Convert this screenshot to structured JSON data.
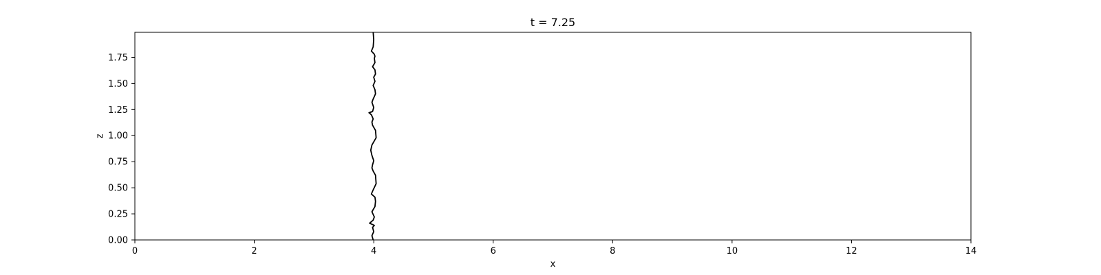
{
  "chart_data": {
    "type": "line",
    "title": "t = 7.25",
    "xlabel": "x",
    "ylabel": "z",
    "xlim": [
      0,
      14
    ],
    "ylim": [
      0,
      1.99
    ],
    "xticks": [
      0,
      2,
      4,
      6,
      8,
      10,
      12,
      14
    ],
    "xtick_labels": [
      "0",
      "2",
      "4",
      "6",
      "8",
      "10",
      "12",
      "14"
    ],
    "yticks": [
      0,
      0.25,
      0.5,
      0.75,
      1.0,
      1.25,
      1.5,
      1.75
    ],
    "ytick_labels": [
      "0.00",
      "0.25",
      "0.50",
      "0.75",
      "1.00",
      "1.25",
      "1.50",
      "1.75"
    ],
    "grid": false,
    "line_color": "#000000",
    "series": [
      {
        "x": [
          3.99,
          3.97,
          4.0,
          3.98,
          4.01,
          3.97,
          3.93,
          3.99,
          4.01,
          3.97,
          4.02,
          4.03,
          4.02,
          3.96,
          3.99,
          4.04,
          4.03,
          3.99,
          3.97,
          3.98,
          4.0,
          3.97,
          3.95,
          3.97,
          4.04,
          4.03,
          3.98,
          3.97,
          3.99,
          3.96,
          3.92,
          3.98,
          4.0,
          3.97,
          3.99,
          4.03,
          4.02,
          3.99,
          4.02,
          4.0,
          4.03,
          4.02,
          3.98,
          4.02,
          4.01,
          4.02,
          4.01,
          3.96,
          3.99,
          4.0,
          3.99
        ],
        "y": [
          0.0,
          0.04,
          0.08,
          0.12,
          0.14,
          0.15,
          0.16,
          0.19,
          0.22,
          0.27,
          0.32,
          0.37,
          0.41,
          0.44,
          0.48,
          0.54,
          0.62,
          0.66,
          0.69,
          0.72,
          0.76,
          0.81,
          0.86,
          0.91,
          0.98,
          1.05,
          1.1,
          1.13,
          1.16,
          1.2,
          1.22,
          1.23,
          1.27,
          1.32,
          1.35,
          1.4,
          1.44,
          1.48,
          1.52,
          1.56,
          1.59,
          1.63,
          1.66,
          1.7,
          1.74,
          1.76,
          1.78,
          1.81,
          1.85,
          1.92,
          1.99
        ]
      }
    ]
  }
}
